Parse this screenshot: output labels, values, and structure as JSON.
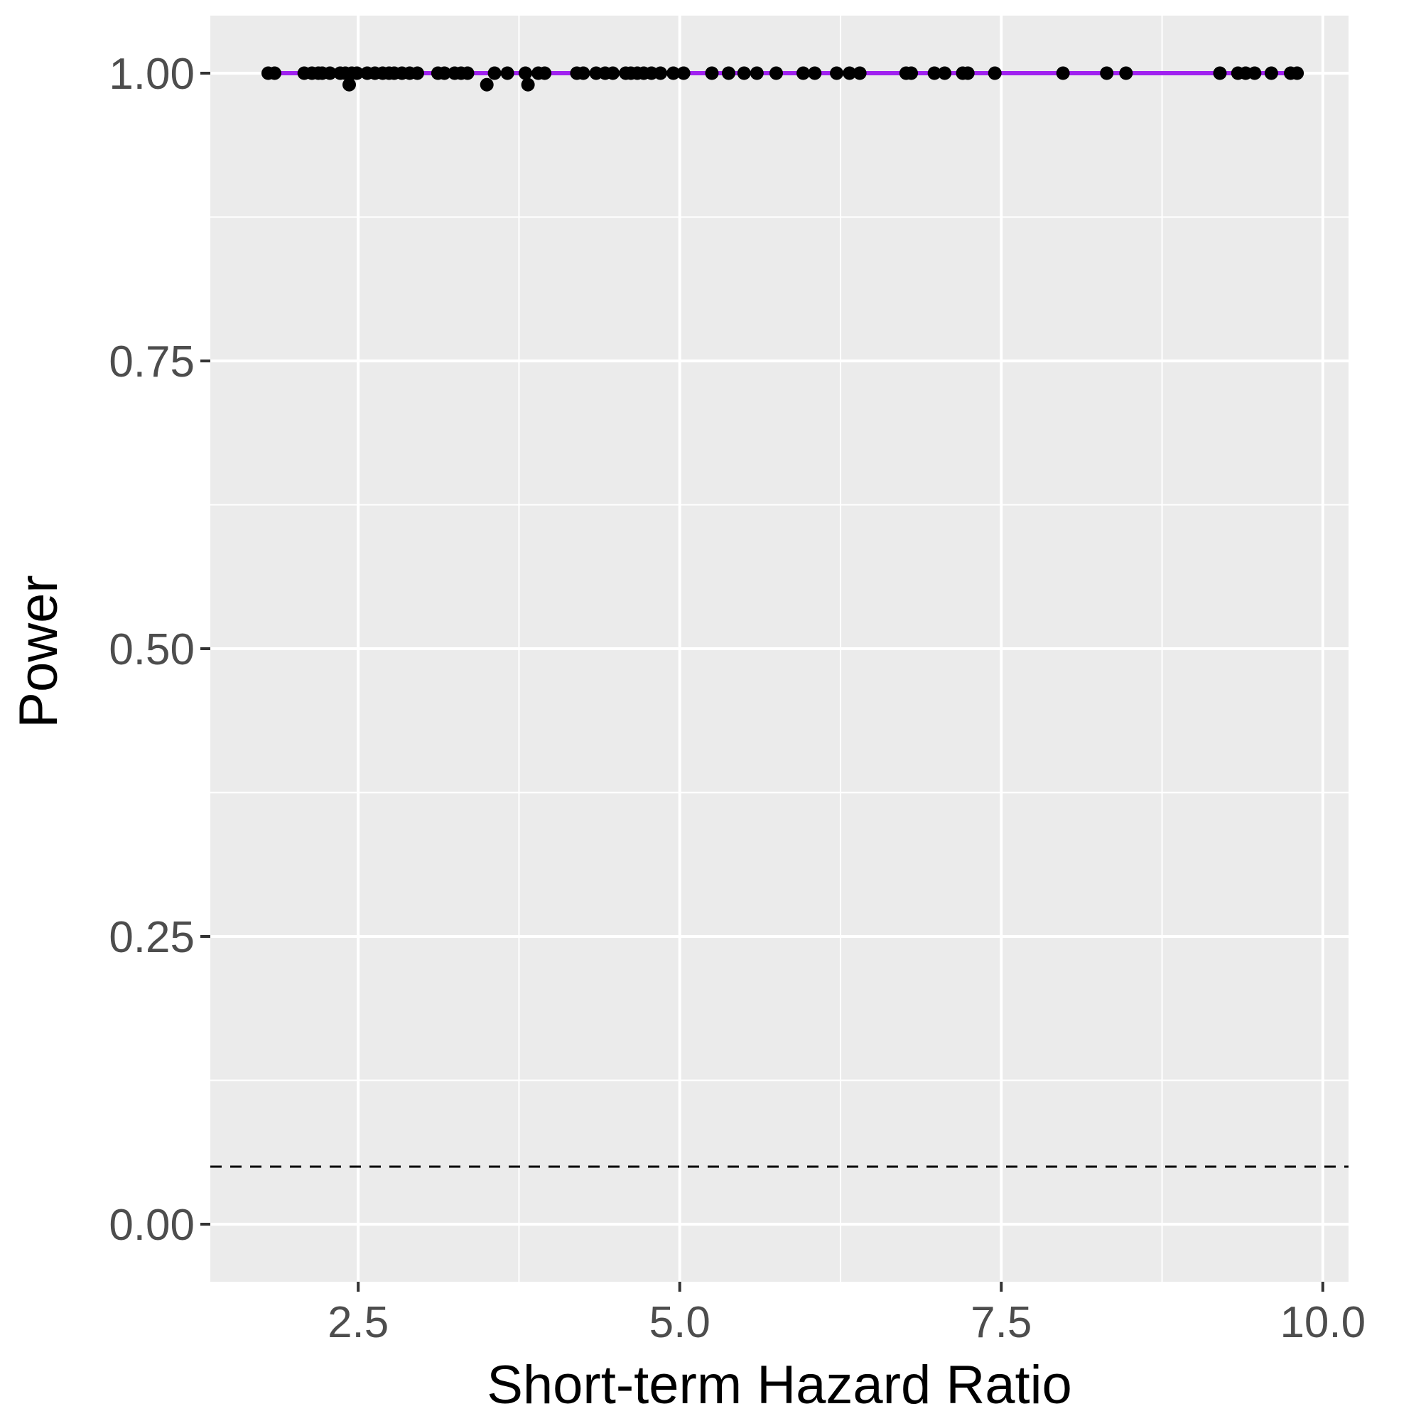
{
  "chart_data": {
    "type": "scatter",
    "title": "",
    "xlabel": "Short-term Hazard Ratio",
    "ylabel": "Power",
    "xlim": [
      1.35,
      10.2
    ],
    "ylim": [
      -0.05,
      1.05
    ],
    "x_ticks": [
      2.5,
      5.0,
      7.5,
      10.0
    ],
    "x_tick_labels": [
      "2.5",
      "5.0",
      "7.5",
      "10.0"
    ],
    "y_ticks": [
      0.0,
      0.25,
      0.5,
      0.75,
      1.0
    ],
    "y_tick_labels": [
      "0.00",
      "0.25",
      "0.50",
      "0.75",
      "1.00"
    ],
    "grid": true,
    "legend": "none",
    "colors": {
      "panel_background": "#ebebeb",
      "grid": "#ffffff",
      "points": "#000000",
      "trend_line": "#a020f0",
      "reference_line": "#000000"
    },
    "reference_line": {
      "y": 0.05,
      "style": "dashed"
    },
    "trend_line": {
      "x": [
        1.8,
        9.8
      ],
      "y": [
        1.0,
        1.0
      ]
    },
    "points": [
      [
        1.8,
        1.0
      ],
      [
        1.85,
        1.0
      ],
      [
        2.08,
        1.0
      ],
      [
        2.14,
        1.0
      ],
      [
        2.19,
        1.0
      ],
      [
        2.22,
        1.0
      ],
      [
        2.28,
        1.0
      ],
      [
        2.36,
        1.0
      ],
      [
        2.4,
        1.0
      ],
      [
        2.43,
        0.99
      ],
      [
        2.45,
        1.0
      ],
      [
        2.49,
        1.0
      ],
      [
        2.57,
        1.0
      ],
      [
        2.63,
        1.0
      ],
      [
        2.69,
        1.0
      ],
      [
        2.74,
        1.0
      ],
      [
        2.78,
        1.0
      ],
      [
        2.84,
        1.0
      ],
      [
        2.9,
        1.0
      ],
      [
        2.96,
        1.0
      ],
      [
        3.12,
        1.0
      ],
      [
        3.17,
        1.0
      ],
      [
        3.25,
        1.0
      ],
      [
        3.3,
        1.0
      ],
      [
        3.35,
        1.0
      ],
      [
        3.5,
        0.99
      ],
      [
        3.56,
        1.0
      ],
      [
        3.66,
        1.0
      ],
      [
        3.8,
        1.0
      ],
      [
        3.82,
        0.99
      ],
      [
        3.9,
        1.0
      ],
      [
        3.95,
        1.0
      ],
      [
        4.2,
        1.0
      ],
      [
        4.25,
        1.0
      ],
      [
        4.35,
        1.0
      ],
      [
        4.42,
        1.0
      ],
      [
        4.48,
        1.0
      ],
      [
        4.58,
        1.0
      ],
      [
        4.62,
        1.0
      ],
      [
        4.67,
        1.0
      ],
      [
        4.72,
        1.0
      ],
      [
        4.78,
        1.0
      ],
      [
        4.85,
        1.0
      ],
      [
        4.95,
        1.0
      ],
      [
        5.03,
        1.0
      ],
      [
        5.25,
        1.0
      ],
      [
        5.38,
        1.0
      ],
      [
        5.5,
        1.0
      ],
      [
        5.6,
        1.0
      ],
      [
        5.75,
        1.0
      ],
      [
        5.96,
        1.0
      ],
      [
        6.05,
        1.0
      ],
      [
        6.22,
        1.0
      ],
      [
        6.32,
        1.0
      ],
      [
        6.4,
        1.0
      ],
      [
        6.76,
        1.0
      ],
      [
        6.8,
        1.0
      ],
      [
        6.98,
        1.0
      ],
      [
        7.06,
        1.0
      ],
      [
        7.2,
        1.0
      ],
      [
        7.24,
        1.0
      ],
      [
        7.45,
        1.0
      ],
      [
        7.98,
        1.0
      ],
      [
        8.32,
        1.0
      ],
      [
        8.47,
        1.0
      ],
      [
        9.2,
        1.0
      ],
      [
        9.34,
        1.0
      ],
      [
        9.4,
        1.0
      ],
      [
        9.47,
        1.0
      ],
      [
        9.6,
        1.0
      ],
      [
        9.75,
        1.0
      ],
      [
        9.8,
        1.0
      ]
    ]
  }
}
